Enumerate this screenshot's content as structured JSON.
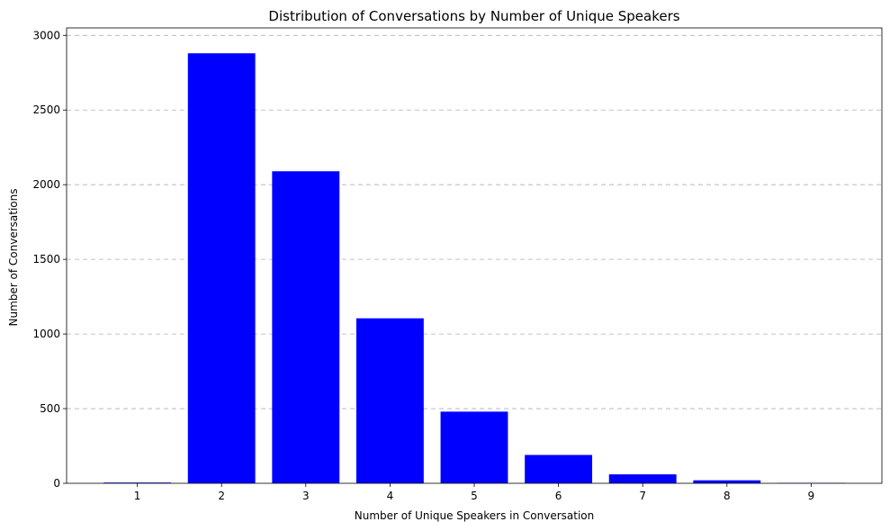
{
  "chart_data": {
    "type": "bar",
    "title": "Distribution of Conversations by Number of Unique Speakers",
    "xlabel": "Number of Unique Speakers in Conversation",
    "ylabel": "Number of Conversations",
    "categories": [
      "1",
      "2",
      "3",
      "4",
      "5",
      "6",
      "7",
      "8",
      "9"
    ],
    "values": [
      5,
      2880,
      2090,
      1105,
      480,
      190,
      60,
      20,
      3
    ],
    "ylim": [
      0,
      3050
    ],
    "yticks": [
      0,
      500,
      1000,
      1500,
      2000,
      2500,
      3000
    ],
    "grid": "y",
    "bar_color": "#0000ff"
  }
}
